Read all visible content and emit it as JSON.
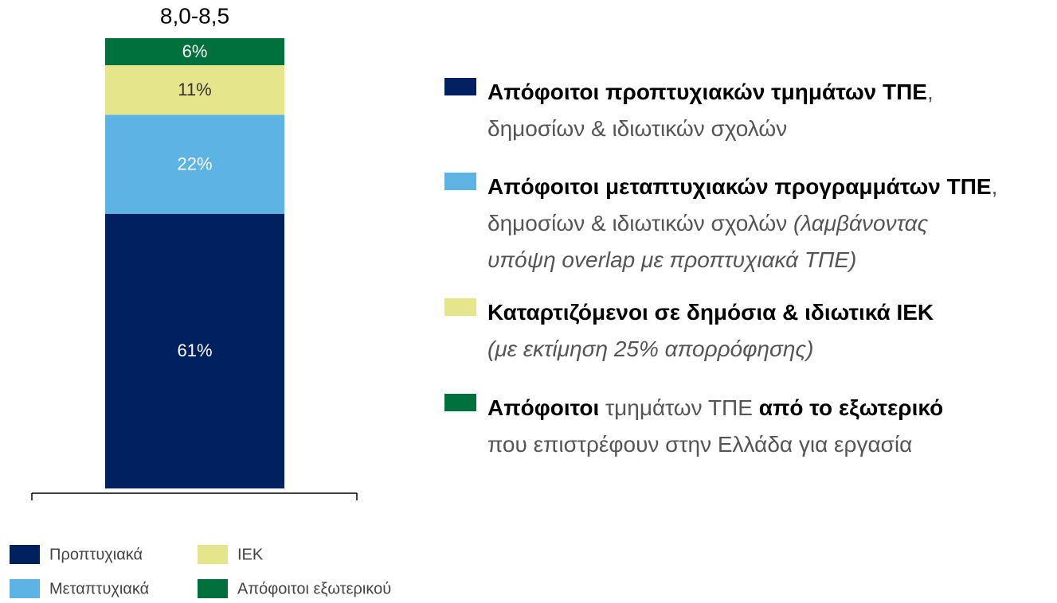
{
  "chart_data": {
    "type": "stacked_bar",
    "categories": [
      "8,0-8,5"
    ],
    "ylim": [
      0,
      100
    ],
    "series": [
      {
        "name": "Προπτυχιακά",
        "color": "#002060",
        "values": [
          61
        ],
        "value_labels": [
          "61%"
        ]
      },
      {
        "name": "Μεταπτυχιακά",
        "color": "#5db3e4",
        "values": [
          22
        ],
        "value_labels": [
          "22%"
        ]
      },
      {
        "name": "ΙΕΚ",
        "color": "#e5e68c",
        "values": [
          11
        ],
        "value_labels": [
          "11%"
        ]
      },
      {
        "name": "Απόφοιτοι εξωτερικού",
        "color": "#00703c",
        "values": [
          6
        ],
        "value_labels": [
          "6%"
        ]
      }
    ],
    "annotations": [
      {
        "lines": [
          [
            {
              "text": "Απόφοιτοι προπτυχιακών τμημάτων ΤΠΕ",
              "style": "strong"
            },
            {
              "text": ",",
              "style": "normal"
            }
          ],
          [
            {
              "text": "δημοσίων & ιδιωτικών σχολών",
              "style": "normal"
            }
          ]
        ]
      },
      {
        "lines": [
          [
            {
              "text": "Απόφοιτοι μεταπτυχιακών προγραμμάτων ΤΠΕ",
              "style": "strong"
            },
            {
              "text": ",",
              "style": "normal"
            }
          ],
          [
            {
              "text": "δημοσίων & ιδιωτικών σχολών ",
              "style": "normal"
            },
            {
              "text": "(λαμβάνοντας",
              "style": "italic"
            }
          ],
          [
            {
              "text": "υπόψη overlap με προπτυχιακά ΤΠΕ)",
              "style": "italic"
            }
          ]
        ]
      },
      {
        "lines": [
          [
            {
              "text": "Καταρτιζόμενοι σε δημόσια & ιδιωτικά ΙΕΚ",
              "style": "strong"
            }
          ],
          [
            {
              "text": "(με εκτίμηση 25% απορρόφησης)",
              "style": "italic"
            }
          ]
        ]
      },
      {
        "lines": [
          [
            {
              "text": "Απόφοιτοι",
              "style": "strong"
            },
            {
              "text": " τμημάτων ΤΠΕ ",
              "style": "normal"
            },
            {
              "text": "από το εξωτερικό",
              "style": "strong"
            }
          ],
          [
            {
              "text": "που επιστρέφουν στην Ελλάδα για εργασία",
              "style": "normal"
            }
          ]
        ]
      }
    ]
  }
}
